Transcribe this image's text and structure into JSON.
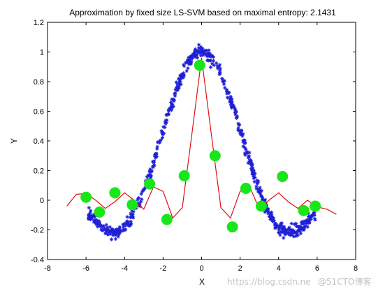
{
  "chart_data": {
    "type": "scatter",
    "title": "Approximation by fixed size LS-SVM based on maximal entropy: 2.1431",
    "xlabel": "X",
    "ylabel": "Y",
    "xlim": [
      -8,
      8
    ],
    "ylim": [
      -0.4,
      1.2
    ],
    "xticks": [
      -8,
      -6,
      -4,
      -2,
      0,
      2,
      4,
      6,
      8
    ],
    "yticks": [
      -0.4,
      -0.2,
      0,
      0.2,
      0.4,
      0.6,
      0.8,
      1,
      1.2
    ],
    "xtick_labels": [
      "-8",
      "-6",
      "-4",
      "-2",
      "0",
      "2",
      "4",
      "6",
      "8"
    ],
    "ytick_labels": [
      "-0.4",
      "-0.2",
      "0",
      "0.2",
      "0.4",
      "0.6",
      "0.8",
      "1",
      "1.2"
    ],
    "grid": false,
    "colors": {
      "data": "#1f1fd6",
      "fit": "#e01010",
      "support": "#19e619"
    },
    "fit_curve": {
      "x": [
        -7,
        -6.5,
        -6,
        -5.5,
        -5,
        -4.5,
        -4,
        -3.5,
        -3,
        -2.5,
        -2,
        -1.5,
        -1,
        -0.5,
        0,
        0.5,
        1,
        1.5,
        2,
        2.5,
        3,
        3.5,
        4,
        4.5,
        5,
        5.5,
        6,
        6.5,
        7
      ],
      "y": [
        -0.04,
        0.04,
        0.045,
        0.0,
        -0.055,
        -0.01,
        0.05,
        0.0,
        -0.06,
        0.09,
        0.06,
        -0.12,
        -0.05,
        0.45,
        0.96,
        0.45,
        -0.05,
        -0.12,
        0.06,
        0.09,
        -0.06,
        0.0,
        0.05,
        -0.01,
        -0.055,
        0.0,
        -0.045,
        -0.06,
        -0.095
      ]
    },
    "support_vectors": {
      "x": [
        -6.0,
        -5.3,
        -4.5,
        -3.6,
        -2.7,
        -1.8,
        -0.9,
        -0.1,
        0.7,
        1.6,
        2.3,
        3.1,
        4.2,
        5.3,
        5.9
      ],
      "y": [
        0.02,
        -0.08,
        0.05,
        -0.03,
        0.11,
        -0.13,
        0.165,
        0.91,
        0.3,
        -0.18,
        0.08,
        -0.04,
        0.16,
        -0.07,
        -0.04
      ]
    },
    "noisy_data": {
      "x_range": [
        -5.9,
        5.9
      ],
      "samples": 650,
      "noise": 0.085
    }
  },
  "watermark": "@51CTO博客",
  "watermark2": "https://blog.csdn.ne"
}
